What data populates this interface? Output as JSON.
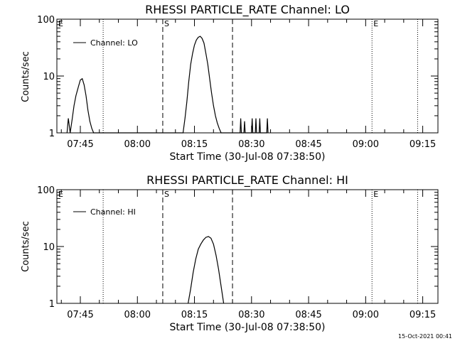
{
  "footer": {
    "timestamp": "15-Oct-2021 00:41"
  },
  "chart_data": [
    {
      "type": "line",
      "title": "RHESSI PARTICLE_RATE Channel: LO",
      "xlabel": "Start Time (30-Jul-08 07:38:50)",
      "ylabel": "Counts/sec",
      "y_scale": "log",
      "ylim": [
        1,
        100
      ],
      "xlim": [
        "07:38:50",
        "09:19:00"
      ],
      "x_ticks": [
        "07:45",
        "08:00",
        "08:15",
        "08:30",
        "08:45",
        "09:00",
        "09:15"
      ],
      "y_ticks": [
        "1",
        "10",
        "100"
      ],
      "legend": {
        "position": "top-left"
      },
      "markers": [
        {
          "label": "E",
          "time": "07:38:50",
          "style": "none"
        },
        {
          "label": "",
          "time": "07:51:00",
          "style": "dotted"
        },
        {
          "label": "S",
          "time": "08:06:40",
          "style": "dashed"
        },
        {
          "label": "",
          "time": "08:25:00",
          "style": "dashed"
        },
        {
          "label": "E",
          "time": "09:01:40",
          "style": "dotted"
        },
        {
          "label": "",
          "time": "09:13:40",
          "style": "dotted"
        }
      ],
      "series": [
        {
          "name": "Channel: LO",
          "x": [
            "07:41:30",
            "07:41:50",
            "07:42:20",
            "07:42:50",
            "07:43:20",
            "07:43:50",
            "07:44:30",
            "07:45:00",
            "07:45:30",
            "07:46:00",
            "07:46:30",
            "07:47:00",
            "07:47:30",
            "07:48:00",
            "07:48:30",
            "07:49:00",
            "07:49:30",
            "07:50:00",
            "07:50:30",
            "07:51:00",
            "07:51:30",
            "07:52:00",
            "08:12:00",
            "08:12:30",
            "08:13:00",
            "08:13:30",
            "08:14:00",
            "08:14:30",
            "08:15:00",
            "08:15:30",
            "08:16:00",
            "08:16:30",
            "08:17:00",
            "08:17:30",
            "08:18:00",
            "08:18:30",
            "08:19:00",
            "08:19:30",
            "08:20:00",
            "08:20:30",
            "08:21:00",
            "08:21:30",
            "08:22:00",
            "08:22:30",
            "08:23:00",
            "08:23:30",
            "08:24:00",
            "08:24:30",
            "08:27:00",
            "08:27:10",
            "08:27:20",
            "08:28:00",
            "08:28:10",
            "08:28:20",
            "08:30:00",
            "08:30:10",
            "08:30:20",
            "08:31:00",
            "08:31:10",
            "08:31:20",
            "08:32:00",
            "08:32:10",
            "08:32:20",
            "08:34:00",
            "08:34:10",
            "08:34:20"
          ],
          "y": [
            1,
            1.8,
            1,
            1.7,
            3,
            4.5,
            6.5,
            8.5,
            9,
            7,
            4.5,
            2.5,
            1.6,
            1.2,
            1,
            1,
            1,
            1,
            1,
            1,
            1,
            1,
            1,
            1.8,
            3.5,
            8,
            16,
            25,
            35,
            43,
            48,
            50,
            46,
            38,
            25,
            16,
            9,
            5,
            3,
            2,
            1.5,
            1.2,
            1,
            1,
            1,
            1,
            1,
            1,
            1,
            1.8,
            1,
            1,
            1.6,
            1,
            1,
            1.8,
            1,
            1,
            1.8,
            1,
            1,
            1.8,
            1,
            1,
            1.8,
            1
          ]
        }
      ]
    },
    {
      "type": "line",
      "title": "RHESSI PARTICLE_RATE Channel: HI",
      "xlabel": "Start Time (30-Jul-08 07:38:50)",
      "ylabel": "Counts/sec",
      "y_scale": "log",
      "ylim": [
        1,
        100
      ],
      "xlim": [
        "07:38:50",
        "09:19:00"
      ],
      "x_ticks": [
        "07:45",
        "08:00",
        "08:15",
        "08:30",
        "08:45",
        "09:00",
        "09:15"
      ],
      "y_ticks": [
        "1",
        "10",
        "100"
      ],
      "legend": {
        "position": "top-left"
      },
      "markers": [
        {
          "label": "E",
          "time": "07:38:50",
          "style": "none"
        },
        {
          "label": "",
          "time": "07:51:00",
          "style": "dotted"
        },
        {
          "label": "S",
          "time": "08:06:40",
          "style": "dashed"
        },
        {
          "label": "",
          "time": "08:25:00",
          "style": "dashed"
        },
        {
          "label": "E",
          "time": "09:01:40",
          "style": "dotted"
        },
        {
          "label": "",
          "time": "09:13:40",
          "style": "dotted"
        }
      ],
      "series": [
        {
          "name": "Channel: HI",
          "x": [
            "08:13:20",
            "08:14:00",
            "08:14:40",
            "08:15:20",
            "08:16:00",
            "08:16:40",
            "08:17:20",
            "08:18:00",
            "08:18:40",
            "08:19:20",
            "08:20:00",
            "08:20:40",
            "08:21:20",
            "08:22:00",
            "08:22:40"
          ],
          "y": [
            1,
            1.8,
            3.5,
            6,
            9,
            11,
            13,
            14.5,
            15,
            14,
            11,
            7,
            4,
            2,
            1
          ]
        }
      ]
    }
  ]
}
